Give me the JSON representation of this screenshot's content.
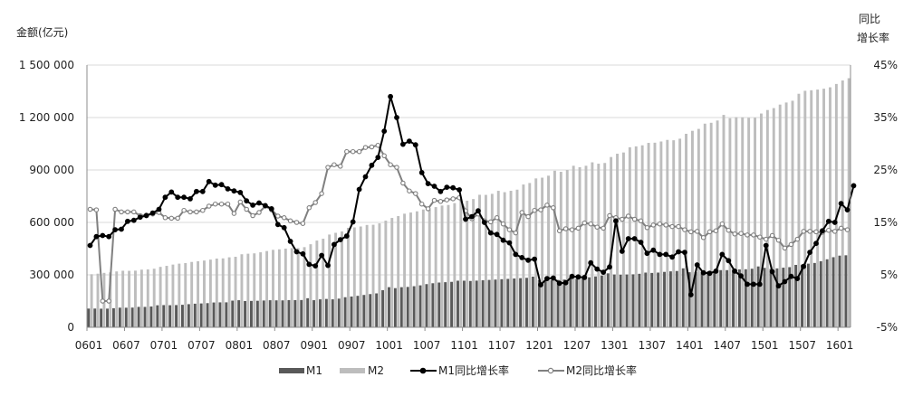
{
  "chart_data": {
    "type": "bar",
    "y_left_label": "金额(亿元)",
    "y_right_label": [
      "同比",
      "增长率"
    ],
    "ylim_left": [
      0,
      1500000
    ],
    "yticks_left": [
      "1 500 000",
      "1 200 000",
      "900 000",
      "600 000",
      "300 000",
      "0"
    ],
    "ylim_right": [
      -5,
      45
    ],
    "yticks_right": [
      "45%",
      "35%",
      "25%",
      "15%",
      "5%",
      "-5%"
    ],
    "x_tick_labels": [
      "0601",
      "0607",
      "0701",
      "0707",
      "0801",
      "0807",
      "0901",
      "0907",
      "1001",
      "1007",
      "1101",
      "1107",
      "1201",
      "1207",
      "1301",
      "1307",
      "1401",
      "1407",
      "1501",
      "1507",
      "1601"
    ],
    "legend": [
      "M1",
      "M2",
      "M1同比增长率",
      "M2同比增长率"
    ],
    "colors": {
      "m1": "#595959",
      "m2": "#bdbdbd",
      "m1_growth": "#000000",
      "m2_growth": "#808080"
    },
    "start_month": "2006-01",
    "series": [
      {
        "name": "M1",
        "values": [
          107000,
          107200,
          106400,
          106800,
          109200,
          112300,
          112000,
          112800,
          116800,
          116600,
          118900,
          126000,
          127000,
          126300,
          127100,
          128800,
          132300,
          135000,
          136400,
          138200,
          141900,
          142600,
          142800,
          152600,
          154900,
          150200,
          150900,
          151700,
          153300,
          154800,
          154100,
          154000,
          155600,
          155600,
          156000,
          166200,
          155000,
          160000,
          162200,
          160000,
          164000,
          172000,
          176000,
          180000,
          185000,
          190000,
          194000,
          212000,
          229600,
          224000,
          229500,
          231000,
          235000,
          240000,
          247000,
          252000,
          256000,
          258000,
          260000,
          266600,
          266700,
          265000,
          267000,
          269000,
          271000,
          273000,
          275000,
          277000,
          279000,
          281000,
          283000,
          289900,
          270000,
          270500,
          270000,
          271000,
          273000,
          287000,
          277000,
          279000,
          286000,
          291000,
          296000,
          308700,
          302000,
          301000,
          302000,
          303000,
          306000,
          313000,
          311000,
          313000,
          317000,
          320000,
          322000,
          337300,
          314900,
          316000,
          319000,
          320000,
          321000,
          327000,
          327000,
          330000,
          331000,
          332000,
          335000,
          348100,
          340000,
          334000,
          337000,
          341000,
          344000,
          357000,
          358000,
          364000,
          368000,
          378000,
          389000,
          401000,
          410000,
          412000
        ],
        "values_approx": true
      },
      {
        "name": "M2",
        "values": [
          303600,
          306700,
          311400,
          314000,
          319600,
          323600,
          323000,
          324000,
          329700,
          331000,
          335000,
          345600,
          351500,
          358700,
          364100,
          367300,
          373900,
          378100,
          381900,
          387200,
          393100,
          394200,
          400400,
          403400,
          417800,
          421000,
          423000,
          429000,
          436200,
          443100,
          446000,
          449900,
          452900,
          453100,
          458600,
          475200,
          496100,
          506700,
          530600,
          540500,
          548300,
          568900,
          571500,
          576700,
          585400,
          586600,
          594600,
          610200,
          625600,
          636100,
          649900,
          656600,
          663400,
          673900,
          674100,
          687500,
          696500,
          699800,
          710300,
          725800,
          724000,
          733800,
          758100,
          757400,
          763400,
          780800,
          772900,
          780900,
          787400,
          816800,
          825500,
          851600,
          855900,
          867200,
          895600,
          889600,
          900000,
          924000,
          916000,
          924000,
          943700,
          936000,
          940000,
          974000,
          993000,
          1000000,
          1030000,
          1035000,
          1041000,
          1055000,
          1056000,
          1063000,
          1072000,
          1070000,
          1079000,
          1107000,
          1124000,
          1135000,
          1165000,
          1170000,
          1183000,
          1215000,
          1196000,
          1202000,
          1201000,
          1198000,
          1199000,
          1223000,
          1243000,
          1254000,
          1274000,
          1286000,
          1296000,
          1336000,
          1353000,
          1356000,
          1360000,
          1365000,
          1373000,
          1392000,
          1412000,
          1425000
        ],
        "values_approx": true
      },
      {
        "name": "M1同比增长率",
        "values": [
          10.6,
          12.3,
          12.5,
          12.3,
          13.6,
          13.7,
          15.2,
          15.4,
          16.0,
          16.3,
          16.8,
          17.5,
          19.8,
          20.8,
          19.8,
          19.8,
          19.5,
          20.9,
          20.9,
          22.8,
          22.1,
          22.2,
          21.4,
          21.0,
          20.7,
          19.1,
          18.3,
          18.7,
          18.2,
          17.6,
          14.6,
          14.0,
          11.4,
          9.4,
          9.0,
          7.0,
          6.7,
          8.7,
          6.8,
          10.8,
          11.7,
          12.4,
          15.1,
          21.3,
          23.7,
          25.9,
          27.4,
          32.4,
          39.0,
          35.0,
          29.9,
          30.5,
          29.8,
          24.5,
          22.4,
          21.9,
          20.9,
          21.7,
          21.6,
          21.2,
          15.6,
          16.1,
          17.2,
          15.0,
          13.0,
          12.7,
          11.6,
          11.1,
          8.9,
          8.3,
          7.8,
          8.0,
          3.1,
          4.3,
          4.4,
          3.4,
          3.5,
          4.7,
          4.6,
          4.5,
          7.3,
          6.1,
          5.5,
          6.5,
          15.3,
          9.5,
          11.9,
          11.9,
          11.2,
          9.1,
          9.7,
          8.9,
          8.9,
          8.4,
          9.4,
          9.3,
          1.2,
          6.9,
          5.4,
          5.3,
          5.7,
          8.9,
          7.7,
          5.7,
          4.8,
          3.2,
          3.2,
          3.2,
          10.6,
          5.6,
          2.9,
          3.7,
          4.7,
          4.3,
          6.6,
          9.3,
          11.0,
          13.4,
          15.2,
          15.0,
          18.6,
          17.4,
          22.0
        ],
        "values_approx": true
      },
      {
        "name": "M2同比增长率",
        "values": [
          17.5,
          17.4,
          0.0,
          0.0,
          17.5,
          17.0,
          17.0,
          17.0,
          16.3,
          16.4,
          16.6,
          16.9,
          15.9,
          15.8,
          15.8,
          17.3,
          17.0,
          17.0,
          17.3,
          18.1,
          18.5,
          18.5,
          18.5,
          16.7,
          18.9,
          17.5,
          16.3,
          16.9,
          18.1,
          17.4,
          16.2,
          15.9,
          15.3,
          15.0,
          14.8,
          17.8,
          18.8,
          20.5,
          25.5,
          26.0,
          25.7,
          28.5,
          28.5,
          28.5,
          29.3,
          29.4,
          29.7,
          27.7,
          26.0,
          25.5,
          22.5,
          21.0,
          20.5,
          18.5,
          17.6,
          19.2,
          19.0,
          19.3,
          19.5,
          19.7,
          17.2,
          15.7,
          16.6,
          15.3,
          15.1,
          15.9,
          14.7,
          13.6,
          13.0,
          16.9,
          16.1,
          17.3,
          17.4,
          18.3,
          17.8,
          13.4,
          13.8,
          13.6,
          13.9,
          14.9,
          14.7,
          14.1,
          13.9,
          16.3,
          15.9,
          15.6,
          16.2,
          15.6,
          15.3,
          14.0,
          14.5,
          14.7,
          14.5,
          14.2,
          14.2,
          13.6,
          13.2,
          13.3,
          12.1,
          13.2,
          13.4,
          14.7,
          13.5,
          12.8,
          12.9,
          12.6,
          12.6,
          12.2,
          11.8,
          12.5,
          11.6,
          10.1,
          10.8,
          11.8,
          13.3,
          13.3,
          13.2,
          13.1,
          13.5,
          13.3,
          13.9,
          13.6
        ],
        "values_approx": true
      }
    ]
  }
}
